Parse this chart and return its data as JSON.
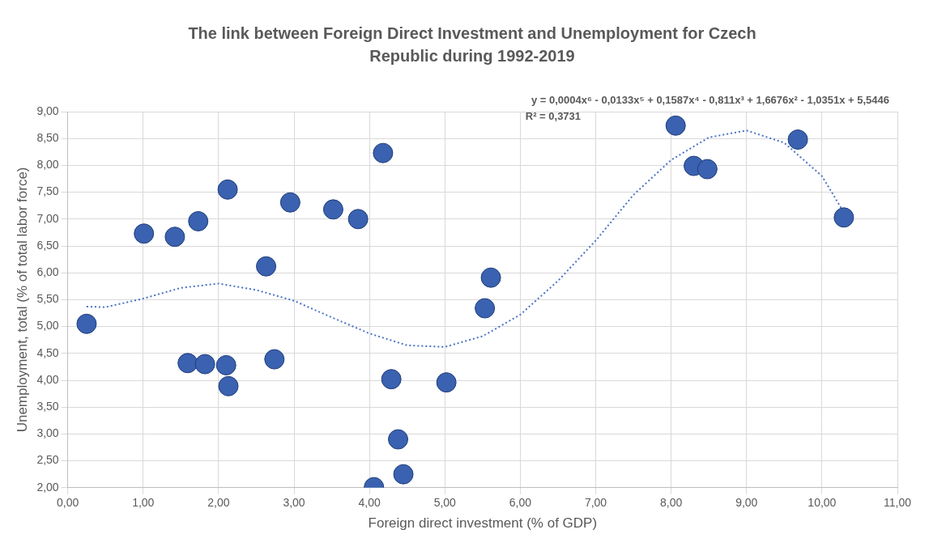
{
  "chart_data": {
    "type": "scatter",
    "title": "The link between Foreign Direct Investment and Unemployment for Czech Republic during 1992-2019",
    "xlabel": "Foreign direct investment (% of GDP)",
    "ylabel": "Unemployment, total (% of total labor force)",
    "annotations": [
      "y = 0,0004x⁶ - 0,0133x⁵ + 0,1587x⁴ - 0,811x³ + 1,6676x² - 1,0351x + 5,5446",
      "R² = 0,3731"
    ],
    "series": [
      {
        "type": "scatter",
        "color": "#3a62b0",
        "marker": "circle",
        "x": [
          0.25,
          1.01,
          1.42,
          1.73,
          2.12,
          2.95,
          3.52,
          3.85,
          4.18,
          2.63,
          5.61,
          5.53,
          1.59,
          1.82,
          2.1,
          2.13,
          2.74,
          4.29,
          5.02,
          4.38,
          4.45,
          4.06,
          8.06,
          8.3,
          8.48,
          9.68,
          10.29
        ],
        "values": [
          5.05,
          6.73,
          6.67,
          6.96,
          7.55,
          7.31,
          7.18,
          7.0,
          8.23,
          6.12,
          5.91,
          5.34,
          4.32,
          4.3,
          4.28,
          3.89,
          4.39,
          4.02,
          3.96,
          2.9,
          2.25,
          2.01,
          8.74,
          7.99,
          7.93,
          8.48,
          7.03
        ]
      },
      {
        "type": "line",
        "color": "#4a72c4",
        "marker": "none",
        "line_style": "dotted",
        "x": [
          0.25,
          0.5,
          1.0,
          1.5,
          2.0,
          2.5,
          3.0,
          3.5,
          4.0,
          4.5,
          5.0,
          5.5,
          6.0,
          6.5,
          7.0,
          7.5,
          8.0,
          8.5,
          9.0,
          9.5,
          10.0,
          10.3
        ],
        "values": [
          5.37,
          5.36,
          5.52,
          5.72,
          5.8,
          5.68,
          5.48,
          5.17,
          4.87,
          4.65,
          4.62,
          4.82,
          5.22,
          5.85,
          6.6,
          7.45,
          8.1,
          8.52,
          8.65,
          8.42,
          7.8,
          7.1
        ]
      }
    ],
    "xlim": [
      0,
      11
    ],
    "xticks": [
      {
        "value": 0,
        "label": "0,00"
      },
      {
        "value": 1,
        "label": "1,00"
      },
      {
        "value": 2,
        "label": "2,00"
      },
      {
        "value": 3,
        "label": "3,00"
      },
      {
        "value": 4,
        "label": "4,00"
      },
      {
        "value": 5,
        "label": "5,00"
      },
      {
        "value": 6,
        "label": "6,00"
      },
      {
        "value": 7,
        "label": "7,00"
      },
      {
        "value": 8,
        "label": "8,00"
      },
      {
        "value": 9,
        "label": "9,00"
      },
      {
        "value": 10,
        "label": "10,00"
      },
      {
        "value": 11,
        "label": "11,00"
      }
    ],
    "ylim": [
      2,
      9
    ],
    "yticks": [
      {
        "value": 2,
        "label": "2,00"
      },
      {
        "value": 2.5,
        "label": "2,50"
      },
      {
        "value": 3,
        "label": "3,00"
      },
      {
        "value": 3.5,
        "label": "3,50"
      },
      {
        "value": 4,
        "label": "4,00"
      },
      {
        "value": 4.5,
        "label": "4,50"
      },
      {
        "value": 5,
        "label": "5,00"
      },
      {
        "value": 5.5,
        "label": "5,50"
      },
      {
        "value": 6,
        "label": "6,00"
      },
      {
        "value": 6.5,
        "label": "6,50"
      },
      {
        "value": 7,
        "label": "7,00"
      },
      {
        "value": 7.5,
        "label": "7,50"
      },
      {
        "value": 8,
        "label": "8,00"
      },
      {
        "value": 8.5,
        "label": "8,50"
      },
      {
        "value": 9,
        "label": "9,00"
      }
    ],
    "grid": true,
    "legend": false
  }
}
